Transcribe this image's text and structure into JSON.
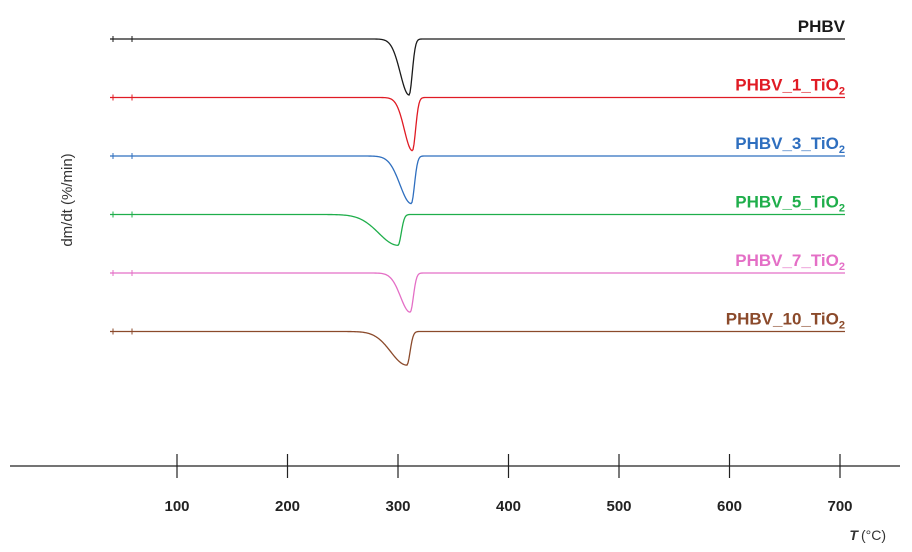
{
  "chart_data": {
    "type": "line",
    "ylabel": "dm/dt (%/min)",
    "xlabel": {
      "var": "T",
      "unit": "(°C)"
    },
    "xlim": [
      0,
      700
    ],
    "x_ticks": [
      100,
      200,
      300,
      400,
      500,
      600,
      700
    ],
    "series": [
      {
        "name": {
          "base": "PHBV",
          "sub": ""
        },
        "color": "#1a1a1a",
        "peak_T": 310,
        "depth": 1.0,
        "onset": 0.55
      },
      {
        "name": {
          "base": "PHBV_1_TiO",
          "sub": "2"
        },
        "color": "#e01b24",
        "peak_T": 313,
        "depth": 0.95,
        "onset": 0.5
      },
      {
        "name": {
          "base": "PHBV_3_TiO",
          "sub": "2"
        },
        "color": "#2f6fbf",
        "peak_T": 312,
        "depth": 0.85,
        "onset": 0.7
      },
      {
        "name": {
          "base": "PHBV_5_TiO",
          "sub": "2"
        },
        "color": "#1fae4b",
        "peak_T": 300,
        "depth": 0.55,
        "onset": 1.2
      },
      {
        "name": {
          "base": "PHBV_7_TiO",
          "sub": "2"
        },
        "color": "#e46fc6",
        "peak_T": 311,
        "depth": 0.7,
        "onset": 0.6
      },
      {
        "name": {
          "base": "PHBV_10_TiO",
          "sub": "2"
        },
        "color": "#8b4a2b",
        "peak_T": 308,
        "depth": 0.6,
        "onset": 1.0
      }
    ]
  }
}
